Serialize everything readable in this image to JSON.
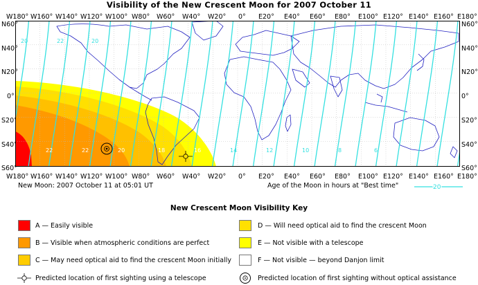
{
  "title": "Visibility of the New Crescent Moon for 2007 October 11",
  "lon_labels": [
    "W180°",
    "W160°",
    "W140°",
    "W120°",
    "W100°",
    "W80°",
    "W60°",
    "W40°",
    "W20°",
    "0°",
    "E20°",
    "E40°",
    "E60°",
    "E80°",
    "E100°",
    "E120°",
    "E140°",
    "E160°",
    "E180°"
  ],
  "lat_labels": [
    "N60°",
    "N40°",
    "N20°",
    "0°",
    "S20°",
    "S40°",
    "S60°"
  ],
  "new_moon_text": "New Moon: 2007 October 11 at 05:01 UT",
  "age_text": "Age of the Moon in hours at \"Best time\"",
  "age_legend_value": "20",
  "contour_labels": [
    "20",
    "22",
    "20",
    "22",
    "22",
    "20",
    "18",
    "16",
    "14",
    "12",
    "10",
    "8",
    "6"
  ],
  "key_title": "New Crescent Moon Visibility Key",
  "key_items": [
    {
      "code": "A",
      "text": "A — Easily visible",
      "color": "#ff0000"
    },
    {
      "code": "B",
      "text": "B — Visible when atmospheric conditions are perfect",
      "color": "#ff9900"
    },
    {
      "code": "C",
      "text": "C — May need optical aid to find the crescent Moon initially",
      "color": "#ffcc00"
    },
    {
      "code": "D",
      "text": "D — Will need optical aid to find the crescent Moon",
      "color": "#ffe000"
    },
    {
      "code": "E",
      "text": "E — Not visible with a telescope",
      "color": "#ffff00"
    },
    {
      "code": "F",
      "text": "F — Not visible — beyond Danjon limit",
      "color": "#ffffff"
    }
  ],
  "marker_telescope_text": "Predicted location of first sighting using a telescope",
  "marker_naked_eye_text": "Predicted location of first sighting without optical assistance",
  "colors": {
    "contour": "#33e0e0",
    "coast": "#2020c0",
    "grid": "#bbbbbb"
  }
}
